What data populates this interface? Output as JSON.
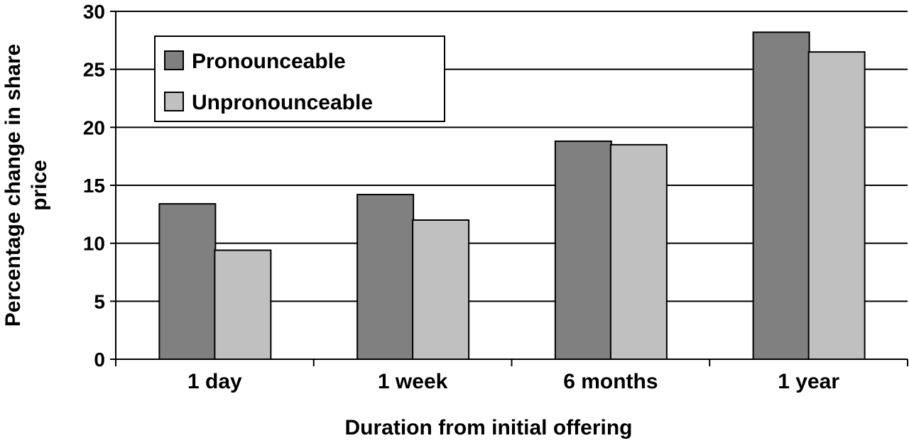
{
  "chart_data": {
    "type": "bar",
    "title": "",
    "xlabel": "Duration from initial offering",
    "ylabel": "Percentage change in share price",
    "categories": [
      "1 day",
      "1 week",
      "6 months",
      "1 year"
    ],
    "series": [
      {
        "name": "Pronounceable",
        "values": [
          13.4,
          14.2,
          18.8,
          28.2
        ],
        "color": "#808080"
      },
      {
        "name": "Unpronounceable",
        "values": [
          9.4,
          12.0,
          18.5,
          26.5
        ],
        "color": "#c0c0c0"
      }
    ],
    "ylim": [
      0,
      30
    ],
    "yticks": [
      "0",
      "5",
      "10",
      "15",
      "20",
      "25",
      "30"
    ],
    "grid": true,
    "legend_position": "top-left"
  }
}
